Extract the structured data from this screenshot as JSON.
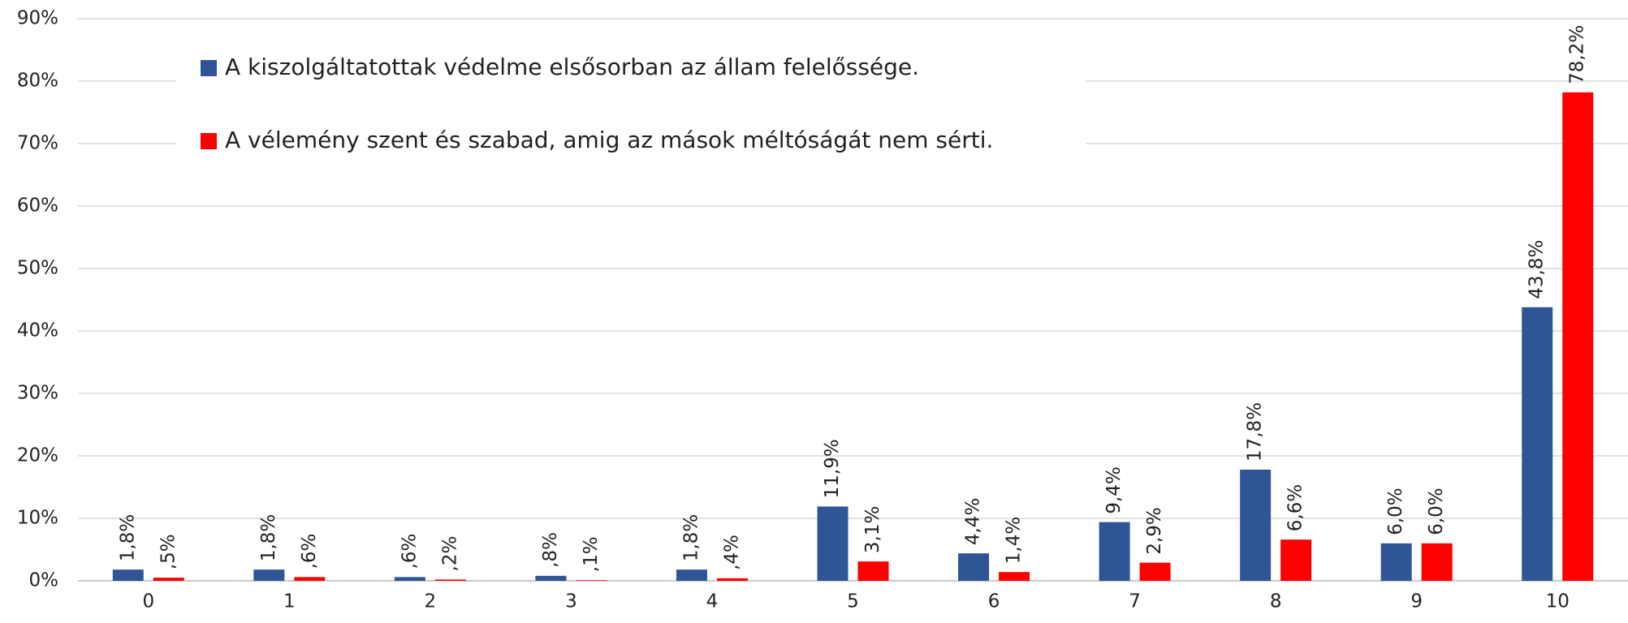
{
  "chart_data": {
    "type": "bar",
    "categories": [
      "0",
      "1",
      "2",
      "3",
      "4",
      "5",
      "6",
      "7",
      "8",
      "9",
      "10"
    ],
    "series": [
      {
        "name": "A kiszolgáltatottak védelme elsősorban az állam felelőssége.",
        "color": "#2f5597",
        "values": [
          1.8,
          1.8,
          0.6,
          0.8,
          1.8,
          11.9,
          4.4,
          9.4,
          17.8,
          6.0,
          43.8
        ],
        "value_labels": [
          "1,8%",
          "1,8%",
          ",6%",
          ",8%",
          "1,8%",
          "11,9%",
          "4,4%",
          "9,4%",
          "17,8%",
          "6,0%",
          "43,8%"
        ]
      },
      {
        "name": "A vélemény szent és szabad, amig az mások méltóságát nem sérti.",
        "color": "#ff0000",
        "values": [
          0.5,
          0.6,
          0.2,
          0.1,
          0.4,
          3.1,
          1.4,
          2.9,
          6.6,
          6.0,
          78.2
        ],
        "value_labels": [
          ",5%",
          ",6%",
          ",2%",
          ",1%",
          ",4%",
          "3,1%",
          "1,4%",
          "2,9%",
          "6,6%",
          "6,0%",
          "78,2%"
        ]
      }
    ],
    "ylim": [
      0,
      90
    ],
    "yticks": [
      {
        "value": 0,
        "label": "0%"
      },
      {
        "value": 10,
        "label": "10%"
      },
      {
        "value": 20,
        "label": "20%"
      },
      {
        "value": 30,
        "label": "30%"
      },
      {
        "value": 40,
        "label": "40%"
      },
      {
        "value": 50,
        "label": "50%"
      },
      {
        "value": 60,
        "label": "60%"
      },
      {
        "value": 70,
        "label": "70%"
      },
      {
        "value": 80,
        "label": "80%"
      },
      {
        "value": 90,
        "label": "90%"
      }
    ],
    "grid": true,
    "legend": "top-left"
  }
}
